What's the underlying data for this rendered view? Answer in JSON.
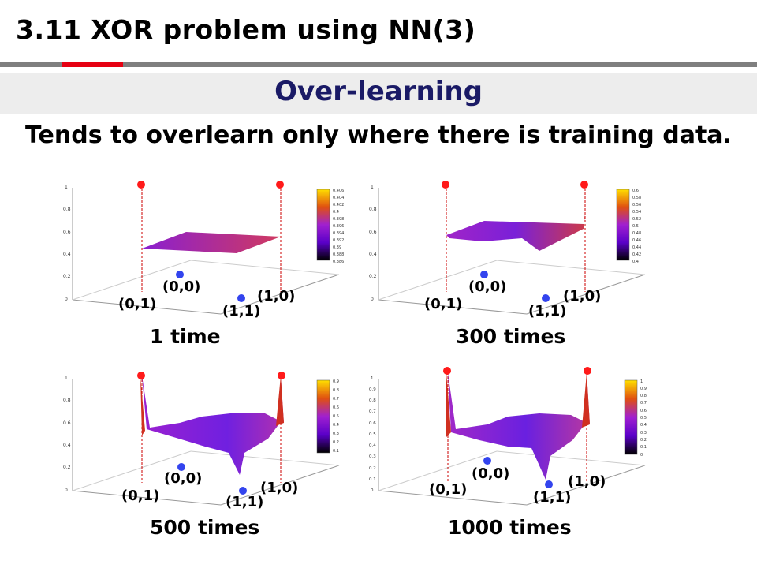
{
  "header": {
    "title": "3.11 XOR problem using NN(3)"
  },
  "section": {
    "title": "Over-learning"
  },
  "subtitle": "Tends to overlearn only where there is training data.",
  "panels": [
    {
      "caption": "1 time",
      "points": {
        "p00": "(0,0)",
        "p01": "(0,1)",
        "p10": "(1,0)",
        "p11": "(1,1)"
      },
      "zticks": [
        "0",
        "0.2",
        "0.4",
        "0.6",
        "0.8",
        "1"
      ],
      "colorbar": [
        "0.406",
        "0.404",
        "0.402",
        "0.4",
        "0.398",
        "0.396",
        "0.394",
        "0.392",
        "0.39",
        "0.388",
        "0.386"
      ]
    },
    {
      "caption": "300 times",
      "points": {
        "p00": "(0,0)",
        "p01": "(0,1)",
        "p10": "(1,0)",
        "p11": "(1,1)"
      },
      "zticks": [
        "0",
        "0.2",
        "0.4",
        "0.6",
        "0.8",
        "1"
      ],
      "colorbar": [
        "0.6",
        "0.58",
        "0.56",
        "0.54",
        "0.52",
        "0.5",
        "0.48",
        "0.46",
        "0.44",
        "0.42",
        "0.4"
      ]
    },
    {
      "caption": "500 times",
      "points": {
        "p00": "(0,0)",
        "p01": "(0,1)",
        "p10": "(1,0)",
        "p11": "(1,1)"
      },
      "zticks": [
        "0",
        "0.2",
        "0.4",
        "0.6",
        "0.8",
        "1"
      ],
      "colorbar": [
        "0.9",
        "0.8",
        "0.7",
        "0.6",
        "0.5",
        "0.4",
        "0.3",
        "0.2",
        "0.1"
      ]
    },
    {
      "caption": "1000 times",
      "points": {
        "p00": "(0,0)",
        "p01": "(0,1)",
        "p10": "(1,0)",
        "p11": "(1,1)"
      },
      "zticks": [
        "0",
        "0.1",
        "0.2",
        "0.3",
        "0.4",
        "0.5",
        "0.6",
        "0.7",
        "0.8",
        "0.9",
        "1"
      ],
      "colorbar": [
        "1",
        "0.9",
        "0.8",
        "0.7",
        "0.6",
        "0.5",
        "0.4",
        "0.3",
        "0.2",
        "0.1",
        "0"
      ]
    }
  ],
  "colors": {
    "accent_red": "#e60012",
    "rule_grey": "#7f7f7f",
    "heading_navy": "#1a1a66",
    "class1_point": "#ff1a1a",
    "class0_point": "#3344ee"
  }
}
